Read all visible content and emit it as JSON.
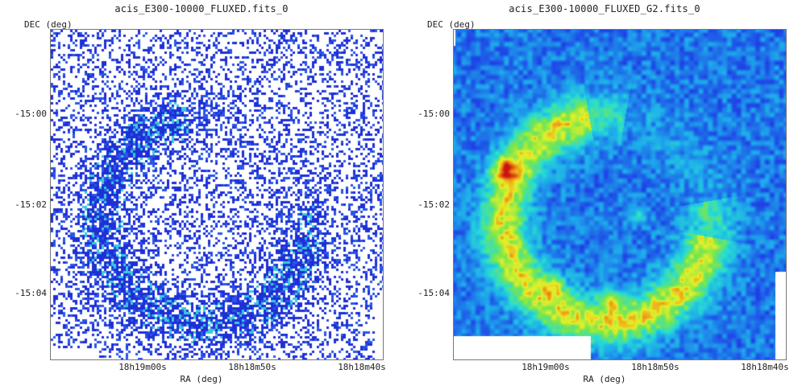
{
  "panels": [
    {
      "title": "acis_E300-10000_FLUXED.fits_0",
      "y_label": "DEC (deg)",
      "x_label": "RA (deg)",
      "y_ticks": [
        "-15:00",
        "-15:02",
        "-15:04"
      ],
      "x_ticks": [
        "18h19m00s",
        "18h18m50s",
        "18h18m40s"
      ],
      "colormap": "raw counts (blue/cyan on white)"
    },
    {
      "title": "acis_E300-10000_FLUXED_G2.fits_0",
      "y_label": "DEC (deg)",
      "x_label": "RA (deg)",
      "y_ticks": [
        "-15:00",
        "-15:02",
        "-15:04"
      ],
      "x_ticks": [
        "18h19m00s",
        "18h18m50s",
        "18h18m40s"
      ],
      "colormap": "smoothed (blue-green-yellow-red)"
    }
  ],
  "colors": {
    "sparse_dark": "#1e2fd6",
    "sparse_mid": "#2a55e8",
    "sparse_cyan": "#3cc8e0",
    "smooth_low": "#1f3be0",
    "smooth_mid": "#1fd2e4",
    "smooth_high": "#7fe04a",
    "smooth_peak": "#d01a10"
  }
}
